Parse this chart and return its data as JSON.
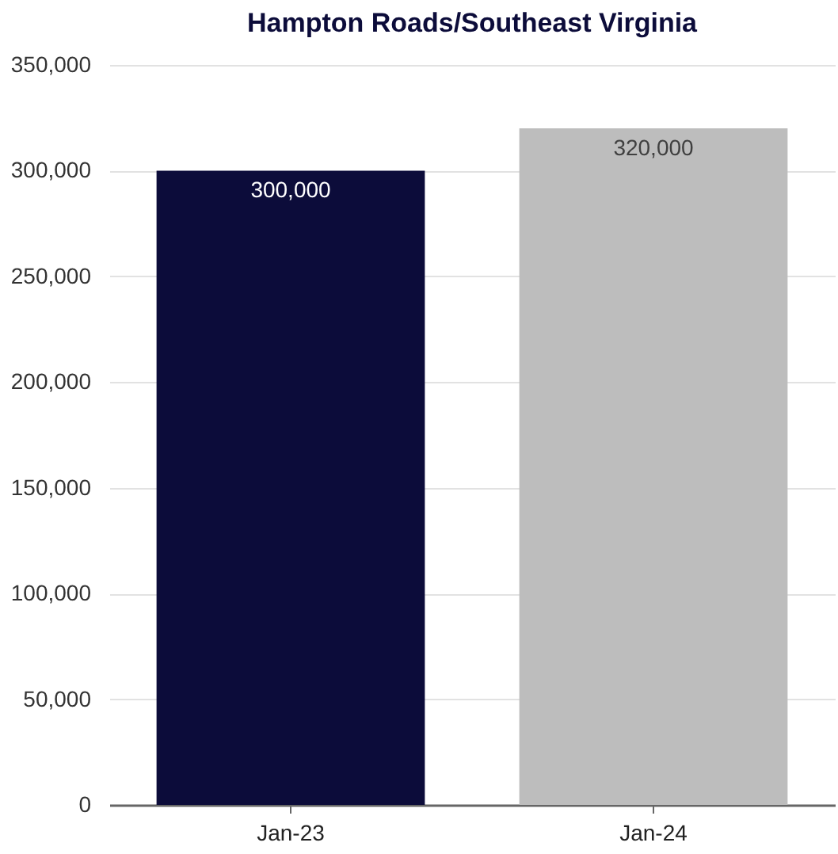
{
  "chart_data": {
    "type": "bar",
    "title": "Hampton Roads/Southeast Virginia",
    "categories": [
      "Jan-23",
      "Jan-24"
    ],
    "values": [
      300000,
      320000
    ],
    "colors": [
      "#0c0c3a",
      "#bdbdbd"
    ],
    "ylim": [
      0,
      350000
    ],
    "yticks": [
      0,
      {
        "value": 50000,
        "label": "50,000"
      },
      {
        "value": 100000,
        "label": "100,000"
      },
      {
        "value": 150000,
        "label": "150,000"
      },
      {
        "value": 200000,
        "label": "200,000"
      },
      {
        "value": 250000,
        "label": "250,000"
      },
      {
        "value": 300000,
        "label": "300,000"
      },
      {
        "value": 350000,
        "label": "350,000"
      }
    ],
    "grid": "y",
    "value_labels": [
      "300,000",
      "320,000"
    ]
  }
}
